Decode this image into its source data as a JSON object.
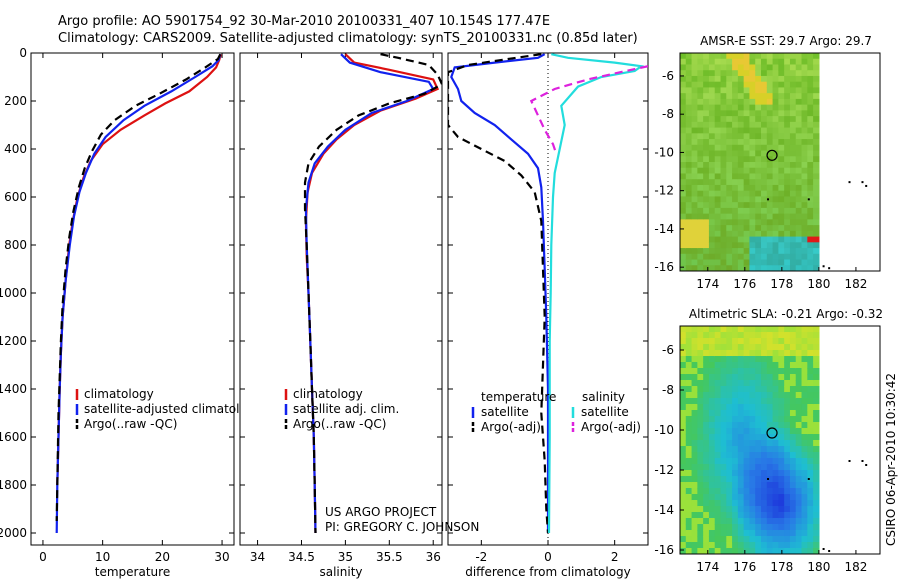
{
  "header": {
    "line1": "Argo profile: AO 5901754_92 30-Mar-2010 20100331_407 10.154S 177.47E",
    "line2": "Climatology: CARS2009. Satellite-adjusted climatology: synTS_20100331.nc (0.85d later)"
  },
  "credit": {
    "project": "US ARGO PROJECT",
    "pi": "PI: GREGORY C. JOHNSON",
    "timestamp": "CSIRO 06-Apr-2010 10:30:42"
  },
  "colors": {
    "climatology": "#dd1111",
    "satellite": "#1122ee",
    "argo": "#000000",
    "satellite_salinity": "#22dddd",
    "argo_salinity_diff": "#dd22dd"
  },
  "chart_data": [
    {
      "id": "temperature",
      "type": "line",
      "xlabel": "temperature",
      "ylabel": "",
      "xlim": [
        -2,
        32
      ],
      "ylim": [
        2050,
        0
      ],
      "xticks": [
        0,
        10,
        20,
        30
      ],
      "yticks": [
        0,
        200,
        400,
        600,
        800,
        1000,
        1200,
        1400,
        1600,
        1800,
        2000
      ],
      "legend": [
        "climatology",
        "satellite-adjusted climatology",
        "Argo(..raw -QC)"
      ],
      "series": [
        {
          "name": "climatology",
          "style": "solid",
          "color": "#dd1111",
          "points": [
            [
              29.8,
              5
            ],
            [
              29.5,
              30
            ],
            [
              29.0,
              60
            ],
            [
              27.5,
              100
            ],
            [
              24.5,
              160
            ],
            [
              20.5,
              210
            ],
            [
              17,
              260
            ],
            [
              13,
              320
            ],
            [
              10,
              380
            ],
            [
              8,
              450
            ],
            [
              6.8,
              520
            ],
            [
              5.8,
              600
            ],
            [
              5,
              700
            ],
            [
              4.4,
              800
            ],
            [
              3.8,
              950
            ],
            [
              3.3,
              1100
            ],
            [
              3,
              1250
            ],
            [
              2.8,
              1400
            ],
            [
              2.6,
              1600
            ],
            [
              2.4,
              1800
            ]
          ]
        },
        {
          "name": "satellite-adjusted climatology",
          "style": "solid",
          "color": "#1122ee",
          "points": [
            [
              29.7,
              5
            ],
            [
              29.4,
              30
            ],
            [
              28.4,
              55
            ],
            [
              25.5,
              100
            ],
            [
              21.5,
              160
            ],
            [
              17,
              220
            ],
            [
              13.5,
              280
            ],
            [
              10.5,
              350
            ],
            [
              8.6,
              420
            ],
            [
              7.2,
              500
            ],
            [
              6.1,
              580
            ],
            [
              5.2,
              680
            ],
            [
              4.5,
              800
            ],
            [
              3.8,
              950
            ],
            [
              3.3,
              1100
            ],
            [
              3,
              1250
            ],
            [
              2.8,
              1400
            ],
            [
              2.6,
              1600
            ],
            [
              2.4,
              1800
            ],
            [
              2.3,
              2000
            ]
          ]
        },
        {
          "name": "Argo(..raw -QC)",
          "style": "dashed",
          "color": "#000000",
          "points": [
            [
              29.7,
              5
            ],
            [
              29.3,
              25
            ],
            [
              27.2,
              60
            ],
            [
              24,
              110
            ],
            [
              19.5,
              170
            ],
            [
              15.5,
              220
            ],
            [
              12,
              280
            ],
            [
              9.7,
              340
            ],
            [
              8.2,
              410
            ],
            [
              7,
              480
            ],
            [
              6,
              560
            ],
            [
              5.1,
              660
            ],
            [
              4.4,
              770
            ],
            [
              3.8,
              900
            ],
            [
              3.3,
              1050
            ],
            [
              3,
              1200
            ],
            [
              2.8,
              1350
            ],
            [
              2.6,
              1500
            ],
            [
              2.5,
              1650
            ],
            [
              2.4,
              1800
            ],
            [
              2.3,
              1950
            ]
          ]
        }
      ]
    },
    {
      "id": "salinity",
      "type": "line",
      "xlabel": "salinity",
      "ylabel": "",
      "xlim": [
        33.8,
        36.1
      ],
      "ylim": [
        2050,
        0
      ],
      "xticks": [
        34,
        34.5,
        35,
        35.5,
        36
      ],
      "xticklabels": [
        "34",
        "34.5",
        "35",
        "35.5",
        "36"
      ],
      "legend": [
        "climatology",
        "satellite adj. clim.",
        "Argo(..raw -QC)"
      ],
      "series": [
        {
          "name": "climatology",
          "style": "solid",
          "color": "#dd1111",
          "points": [
            [
              35.0,
              5
            ],
            [
              35.1,
              40
            ],
            [
              35.5,
              70
            ],
            [
              36.0,
              110
            ],
            [
              36.05,
              150
            ],
            [
              35.8,
              190
            ],
            [
              35.4,
              240
            ],
            [
              35.1,
              300
            ],
            [
              34.9,
              360
            ],
            [
              34.75,
              420
            ],
            [
              34.62,
              500
            ],
            [
              34.57,
              580
            ],
            [
              34.55,
              700
            ],
            [
              34.56,
              850
            ],
            [
              34.58,
              1000
            ],
            [
              34.6,
              1200
            ],
            [
              34.62,
              1400
            ],
            [
              34.64,
              1600
            ],
            [
              34.65,
              1800
            ],
            [
              34.66,
              2000
            ]
          ]
        },
        {
          "name": "satellite adj. clim.",
          "style": "solid",
          "color": "#1122ee",
          "points": [
            [
              34.95,
              5
            ],
            [
              35.05,
              40
            ],
            [
              35.4,
              80
            ],
            [
              35.95,
              120
            ],
            [
              36.0,
              150
            ],
            [
              35.7,
              200
            ],
            [
              35.3,
              250
            ],
            [
              35.0,
              320
            ],
            [
              34.8,
              390
            ],
            [
              34.65,
              460
            ],
            [
              34.58,
              540
            ],
            [
              34.55,
              650
            ],
            [
              34.56,
              800
            ],
            [
              34.58,
              1000
            ],
            [
              34.6,
              1200
            ],
            [
              34.62,
              1400
            ],
            [
              34.64,
              1600
            ],
            [
              34.65,
              1800
            ],
            [
              34.66,
              2000
            ]
          ]
        },
        {
          "name": "Argo(..raw -QC)",
          "style": "dashed",
          "color": "#000000",
          "points": [
            [
              35.4,
              5
            ],
            [
              35.6,
              20
            ],
            [
              35.95,
              50
            ],
            [
              36.05,
              90
            ],
            [
              36.1,
              130
            ],
            [
              35.9,
              170
            ],
            [
              35.5,
              210
            ],
            [
              35.15,
              260
            ],
            [
              34.9,
              320
            ],
            [
              34.7,
              390
            ],
            [
              34.58,
              460
            ],
            [
              34.54,
              540
            ],
            [
              34.54,
              650
            ],
            [
              34.56,
              800
            ],
            [
              34.58,
              1000
            ],
            [
              34.6,
              1200
            ],
            [
              34.62,
              1400
            ],
            [
              34.64,
              1600
            ],
            [
              34.65,
              1800
            ],
            [
              34.66,
              2000
            ]
          ]
        }
      ]
    },
    {
      "id": "difference",
      "type": "line",
      "xlabel": "difference from climatology",
      "ylabel": "",
      "xlim": [
        -3,
        3
      ],
      "ylim": [
        2050,
        0
      ],
      "xticks": [
        -2,
        0,
        2
      ],
      "legend_groups": [
        {
          "title": "temperature",
          "items": [
            "satellite",
            "Argo(-adj)"
          ]
        },
        {
          "title": "salinity",
          "items": [
            "satellite",
            "Argo(-adj)"
          ]
        }
      ],
      "series": [
        {
          "name": "temperature satellite",
          "style": "solid",
          "color": "#1122ee",
          "points": [
            [
              -0.1,
              5
            ],
            [
              -0.3,
              20
            ],
            [
              -1.6,
              40
            ],
            [
              -2.8,
              60
            ],
            [
              -2.9,
              100
            ],
            [
              -2.7,
              150
            ],
            [
              -2.6,
              200
            ],
            [
              -2.2,
              250
            ],
            [
              -1.6,
              300
            ],
            [
              -1.1,
              360
            ],
            [
              -0.6,
              420
            ],
            [
              -0.3,
              480
            ],
            [
              -0.2,
              560
            ],
            [
              -0.15,
              700
            ],
            [
              -0.1,
              900
            ],
            [
              -0.05,
              1100
            ],
            [
              0,
              1400
            ],
            [
              0,
              1800
            ],
            [
              0,
              2000
            ]
          ]
        },
        {
          "name": "temperature Argo(-adj)",
          "style": "dashed",
          "color": "#000000",
          "points": [
            [
              -0.2,
              5
            ],
            [
              -1.2,
              25
            ],
            [
              -2.4,
              50
            ],
            [
              -3,
              80
            ],
            [
              -3,
              300
            ],
            [
              -2.7,
              350
            ],
            [
              -2.0,
              400
            ],
            [
              -1.3,
              450
            ],
            [
              -0.8,
              510
            ],
            [
              -0.4,
              580
            ],
            [
              -0.2,
              700
            ],
            [
              -0.15,
              900
            ],
            [
              -0.1,
              1100
            ],
            [
              -0.15,
              1300
            ],
            [
              -0.2,
              1500
            ],
            [
              -0.1,
              1700
            ],
            [
              -0.05,
              1900
            ],
            [
              0,
              2000
            ]
          ]
        },
        {
          "name": "salinity satellite",
          "style": "solid",
          "color": "#22dddd",
          "points": [
            [
              0.1,
              5
            ],
            [
              0.6,
              20
            ],
            [
              2.0,
              40
            ],
            [
              2.8,
              55
            ],
            [
              2.6,
              75
            ],
            [
              1.6,
              100
            ],
            [
              0.9,
              140
            ],
            [
              0.4,
              220
            ],
            [
              0.5,
              300
            ],
            [
              0.35,
              400
            ],
            [
              0.2,
              500
            ],
            [
              0.15,
              600
            ],
            [
              0.1,
              800
            ],
            [
              0.08,
              1000
            ],
            [
              0.05,
              1200
            ],
            [
              0.05,
              1600
            ],
            [
              0.03,
              2000
            ]
          ]
        },
        {
          "name": "salinity Argo(-adj)",
          "style": "dashed",
          "color": "#dd22dd",
          "points": [
            [
              3,
              55
            ],
            [
              2.5,
              70
            ],
            [
              1.2,
              110
            ],
            [
              0.2,
              150
            ],
            [
              -0.5,
              200
            ],
            [
              -0.3,
              260
            ],
            [
              -0.1,
              320
            ],
            [
              0.15,
              380
            ],
            [
              0.25,
              420
            ]
          ]
        }
      ]
    },
    {
      "id": "amsre",
      "type": "heatmap",
      "title": "AMSR-E SST: 29.7 Argo: 29.7",
      "xlim": [
        172.5,
        183.3
      ],
      "ylim": [
        -16.2,
        -4.8
      ],
      "xticks": [
        174,
        176,
        178,
        180,
        182
      ],
      "yticks": [
        -6,
        -8,
        -10,
        -12,
        -14,
        -16
      ],
      "marker": {
        "lon": 177.47,
        "lat": -10.15
      }
    },
    {
      "id": "sla",
      "type": "heatmap",
      "title": "Altimetric SLA: -0.21 Argo: -0.32",
      "xlim": [
        172.5,
        183.3
      ],
      "ylim": [
        -16.2,
        -4.8
      ],
      "xticks": [
        174,
        176,
        178,
        180,
        182
      ],
      "yticks": [
        -6,
        -8,
        -10,
        -12,
        -14,
        -16
      ],
      "marker": {
        "lon": 177.47,
        "lat": -10.15
      }
    }
  ]
}
